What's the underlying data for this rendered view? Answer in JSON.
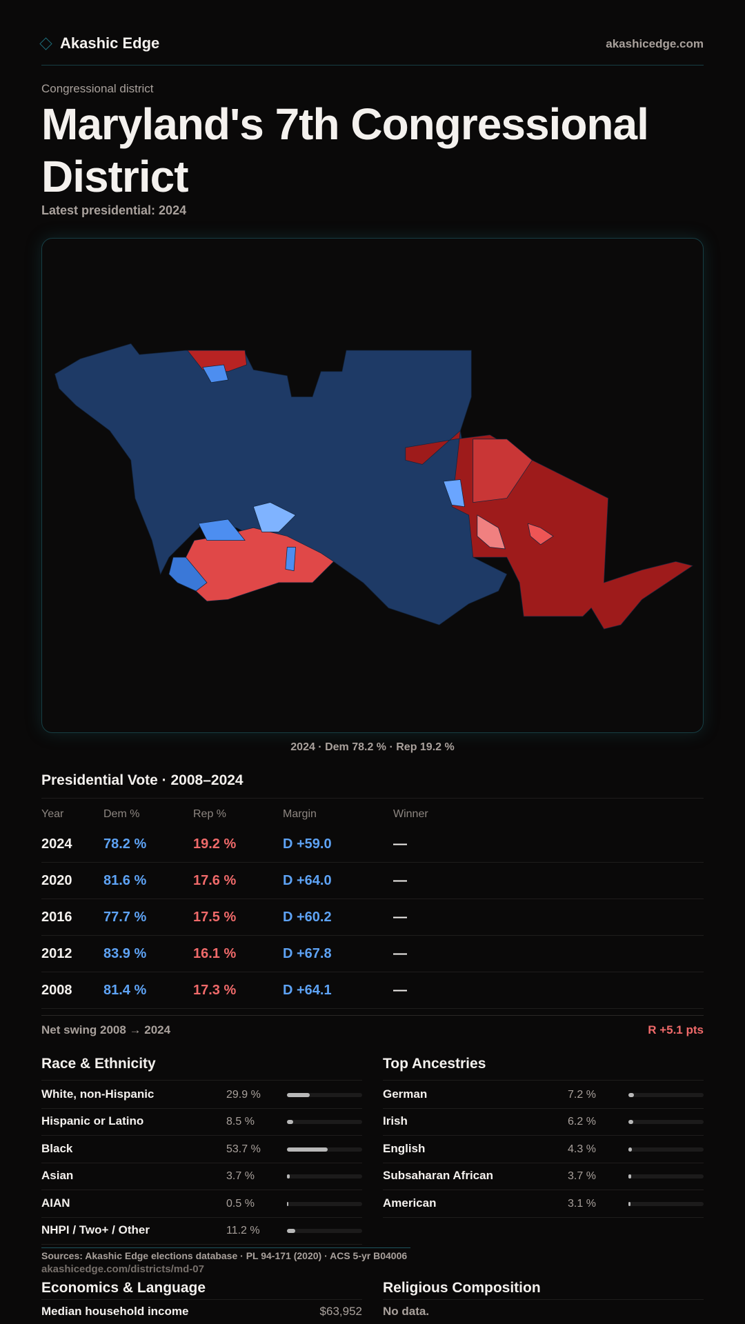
{
  "header": {
    "brand": "Akashic Edge",
    "site": "akashicedge.com"
  },
  "page": {
    "kicker": "Congressional district",
    "title": "Maryland's 7th Congressional District",
    "subtitle": "Latest presidential: 2024"
  },
  "map": {
    "caption": "2024 · Dem 78.2 % · Rep 19.2 %",
    "colors": {
      "dem": "#1e3a66",
      "rep": "#9e1b1b"
    }
  },
  "vote": {
    "title": "Presidential Vote · 2008–2024",
    "columns": [
      "Year",
      "Dem %",
      "Rep %",
      "Margin",
      "Winner"
    ],
    "rows": [
      {
        "year": "2024",
        "dem": "78.2 %",
        "rep": "19.2 %",
        "margin": "D +59.0",
        "winner": "—"
      },
      {
        "year": "2020",
        "dem": "81.6 %",
        "rep": "17.6 %",
        "margin": "D +64.0",
        "winner": "—"
      },
      {
        "year": "2016",
        "dem": "77.7 %",
        "rep": "17.5 %",
        "margin": "D +60.2",
        "winner": "—"
      },
      {
        "year": "2012",
        "dem": "83.9 %",
        "rep": "16.1 %",
        "margin": "D +67.8",
        "winner": "—"
      },
      {
        "year": "2008",
        "dem": "81.4 %",
        "rep": "17.3 %",
        "margin": "D +64.1",
        "winner": "—"
      }
    ],
    "swing_label": "Net swing 2008 → 2024",
    "swing_value": "R +5.1 pts"
  },
  "race": {
    "title": "Race & Ethnicity",
    "items": [
      {
        "label": "White, non-Hispanic",
        "value": "29.9 %",
        "pct": 29.9
      },
      {
        "label": "Hispanic or Latino",
        "value": "8.5 %",
        "pct": 8.5
      },
      {
        "label": "Black",
        "value": "53.7 %",
        "pct": 53.7
      },
      {
        "label": "Asian",
        "value": "3.7 %",
        "pct": 3.7
      },
      {
        "label": "AIAN",
        "value": "0.5 %",
        "pct": 0.5
      },
      {
        "label": "NHPI / Two+ / Other",
        "value": "11.2 %",
        "pct": 11.2
      }
    ]
  },
  "ancestry": {
    "title": "Top Ancestries",
    "items": [
      {
        "label": "German",
        "value": "7.2 %",
        "pct": 7.2
      },
      {
        "label": "Irish",
        "value": "6.2 %",
        "pct": 6.2
      },
      {
        "label": "English",
        "value": "4.3 %",
        "pct": 4.3
      },
      {
        "label": "Subsaharan African",
        "value": "3.7 %",
        "pct": 3.7
      },
      {
        "label": "American",
        "value": "3.1 %",
        "pct": 3.1
      }
    ]
  },
  "economics": {
    "title": "Economics & Language",
    "items": [
      {
        "label": "Median household income",
        "value": "$63,952"
      }
    ]
  },
  "religion": {
    "title": "Religious Composition",
    "empty": "No data."
  },
  "footer": {
    "sources": "Sources: Akashic Edge elections database · PL 94-171 (2020) · ACS 5-yr B04006",
    "url": "akashicedge.com/districts/md-07"
  }
}
